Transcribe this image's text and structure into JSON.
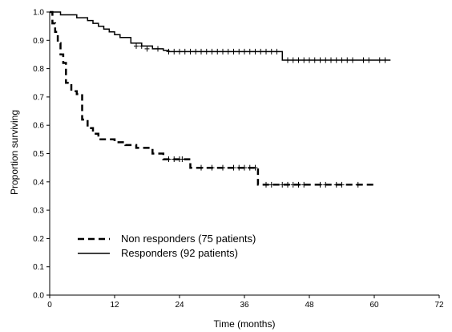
{
  "chart_data": {
    "type": "line",
    "title": "",
    "xlabel": "Time (months)",
    "ylabel": "Proportion surviving",
    "xlim": [
      0,
      72
    ],
    "ylim": [
      0,
      1.0
    ],
    "xticks": [
      0,
      12,
      24,
      36,
      48,
      60,
      72
    ],
    "yticks": [
      0.0,
      0.1,
      0.2,
      0.3,
      0.4,
      0.5,
      0.6,
      0.7,
      0.8,
      0.9,
      1.0
    ],
    "xtick_labels": [
      "0",
      "12",
      "24",
      "36",
      "48",
      "60",
      "72"
    ],
    "ytick_labels": [
      "0.0",
      "0.1",
      "0.2",
      "0.3",
      "0.4",
      "0.5",
      "0.6",
      "0.7",
      "0.8",
      "0.9",
      "1.0"
    ],
    "grid": false,
    "legend_position": "lower-left",
    "series": [
      {
        "name": "Non responders (75 patients)",
        "line_style": "dashed",
        "color": "#000000",
        "x": [
          0,
          0.5,
          1.0,
          1.5,
          2.0,
          2.5,
          3.0,
          4.0,
          5.0,
          6.0,
          7.0,
          8.0,
          9.0,
          12.0,
          14.0,
          16.0,
          19.0,
          21.0,
          26.0,
          38.5,
          60.0
        ],
        "y": [
          1.0,
          0.96,
          0.93,
          0.89,
          0.85,
          0.82,
          0.75,
          0.72,
          0.71,
          0.62,
          0.59,
          0.57,
          0.55,
          0.54,
          0.53,
          0.52,
          0.5,
          0.48,
          0.45,
          0.39,
          0.39
        ],
        "censored_x": [
          22,
          23,
          24,
          24.5,
          28,
          30,
          32,
          34,
          35,
          36,
          37,
          38,
          40,
          41,
          43,
          44,
          45,
          46,
          47,
          50,
          51,
          53,
          54,
          57
        ],
        "censored_y": [
          0.48,
          0.48,
          0.48,
          0.48,
          0.45,
          0.45,
          0.45,
          0.45,
          0.45,
          0.45,
          0.45,
          0.45,
          0.39,
          0.39,
          0.39,
          0.39,
          0.39,
          0.39,
          0.39,
          0.39,
          0.39,
          0.39,
          0.39,
          0.39
        ]
      },
      {
        "name": "Responders (92 patients)",
        "line_style": "solid",
        "color": "#000000",
        "x": [
          0,
          2.0,
          5.0,
          7.0,
          8.0,
          9.0,
          10.0,
          11.0,
          12.0,
          13.0,
          15.0,
          17.0,
          19.0,
          21.0,
          22.0,
          43.0,
          63.0
        ],
        "y": [
          1.0,
          0.99,
          0.98,
          0.97,
          0.96,
          0.95,
          0.94,
          0.93,
          0.92,
          0.91,
          0.89,
          0.88,
          0.87,
          0.865,
          0.86,
          0.83,
          0.83
        ],
        "censored_x": [
          16,
          17,
          18,
          20,
          22,
          23,
          24,
          25,
          26,
          27,
          28,
          29,
          30,
          31,
          32,
          33,
          34,
          35,
          36,
          37,
          38,
          39,
          40,
          41,
          42,
          44,
          45,
          46,
          47,
          48,
          49,
          50,
          51,
          52,
          53,
          54,
          55,
          56,
          58,
          59,
          61,
          62
        ],
        "censored_y": [
          0.88,
          0.88,
          0.87,
          0.87,
          0.86,
          0.86,
          0.86,
          0.86,
          0.86,
          0.86,
          0.86,
          0.86,
          0.86,
          0.86,
          0.86,
          0.86,
          0.86,
          0.86,
          0.86,
          0.86,
          0.86,
          0.86,
          0.86,
          0.86,
          0.86,
          0.83,
          0.83,
          0.83,
          0.83,
          0.83,
          0.83,
          0.83,
          0.83,
          0.83,
          0.83,
          0.83,
          0.83,
          0.83,
          0.83,
          0.83,
          0.83,
          0.83
        ]
      }
    ]
  }
}
